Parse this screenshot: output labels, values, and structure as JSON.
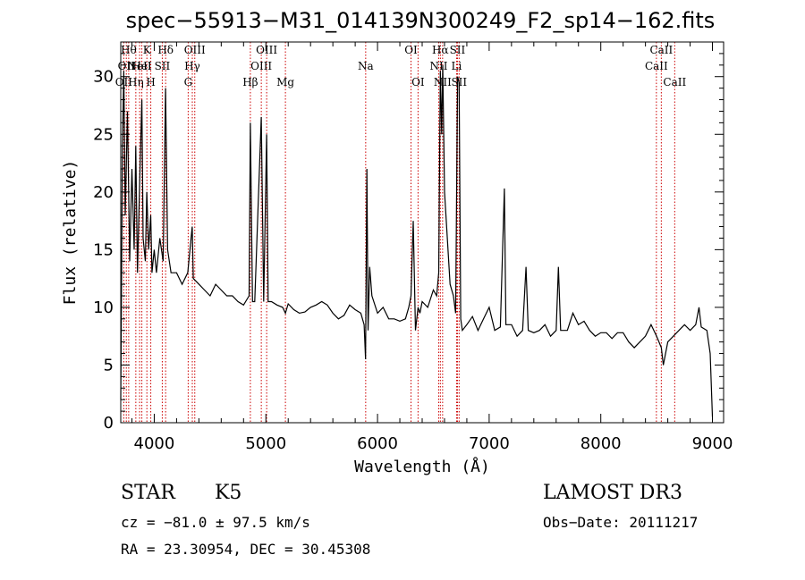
{
  "chart_data": {
    "type": "line",
    "title": "spec−55913−M31_014139N300249_F2_sp14−162.fits",
    "xlabel": "Wavelength (Å)",
    "ylabel": "Flux (relative)",
    "xlim": [
      3700,
      9100
    ],
    "ylim": [
      0,
      33
    ],
    "xticks": [
      4000,
      5000,
      6000,
      7000,
      8000,
      9000
    ],
    "yticks": [
      0,
      5,
      10,
      15,
      20,
      25,
      30
    ],
    "series": [
      {
        "color": "#000000",
        "x": [
          3700,
          3715,
          3727,
          3740,
          3760,
          3780,
          3800,
          3820,
          3835,
          3850,
          3870,
          3889,
          3900,
          3920,
          3933,
          3950,
          3968,
          3980,
          4000,
          4020,
          4050,
          4080,
          4101,
          4120,
          4150,
          4200,
          4250,
          4300,
          4340,
          4350,
          4400,
          4450,
          4500,
          4550,
          4600,
          4650,
          4700,
          4750,
          4800,
          4850,
          4861,
          4880,
          4900,
          4959,
          4980,
          5007,
          5020,
          5050,
          5100,
          5150,
          5175,
          5200,
          5250,
          5300,
          5350,
          5400,
          5450,
          5500,
          5550,
          5600,
          5650,
          5700,
          5750,
          5800,
          5850,
          5880,
          5893,
          5905,
          5915,
          5930,
          5950,
          6000,
          6050,
          6100,
          6150,
          6200,
          6250,
          6280,
          6300,
          6320,
          6340,
          6363,
          6380,
          6400,
          6450,
          6500,
          6530,
          6548,
          6563,
          6575,
          6584,
          6600,
          6650,
          6680,
          6700,
          6717,
          6731,
          6745,
          6760,
          6800,
          6850,
          6900,
          6950,
          7000,
          7050,
          7100,
          7136,
          7150,
          7200,
          7250,
          7300,
          7330,
          7350,
          7400,
          7450,
          7500,
          7550,
          7600,
          7620,
          7640,
          7700,
          7750,
          7800,
          7850,
          7900,
          7950,
          8000,
          8050,
          8100,
          8150,
          8200,
          8250,
          8300,
          8350,
          8400,
          8450,
          8500,
          8542,
          8560,
          8600,
          8650,
          8700,
          8750,
          8800,
          8850,
          8880,
          8900,
          8950,
          8980,
          9000
        ],
        "y": [
          2.0,
          24.0,
          30.5,
          18.0,
          27.0,
          14.0,
          22.0,
          15.0,
          24.0,
          13.0,
          21.0,
          28.0,
          16.0,
          14.0,
          20.0,
          15.0,
          18.0,
          13.0,
          15.0,
          13.0,
          16.0,
          14.0,
          29.0,
          15.0,
          13.0,
          13.0,
          12.0,
          13.0,
          17.0,
          12.5,
          12.0,
          11.5,
          11.0,
          12.0,
          11.5,
          11.0,
          11.0,
          10.5,
          10.2,
          11.0,
          26.0,
          10.5,
          10.5,
          26.5,
          10.5,
          25.0,
          10.5,
          10.5,
          10.2,
          10.0,
          9.5,
          10.3,
          9.8,
          9.5,
          9.6,
          10.0,
          10.2,
          10.5,
          10.2,
          9.5,
          9.0,
          9.3,
          10.2,
          9.8,
          9.5,
          8.5,
          5.5,
          22.0,
          8.0,
          13.5,
          11.0,
          9.5,
          10.0,
          9.0,
          9.0,
          8.8,
          9.0,
          10.0,
          11.0,
          17.5,
          8.0,
          10.0,
          9.5,
          10.5,
          10.0,
          11.5,
          11.0,
          13.0,
          30.5,
          25.0,
          31.0,
          20.0,
          12.0,
          11.0,
          9.5,
          30.0,
          29.5,
          9.0,
          8.0,
          8.5,
          9.2,
          8.0,
          9.0,
          10.0,
          8.0,
          8.3,
          20.3,
          8.5,
          8.5,
          7.5,
          8.0,
          13.5,
          8.0,
          7.8,
          8.0,
          8.5,
          7.5,
          8.0,
          13.5,
          8.0,
          8.0,
          9.5,
          8.5,
          8.8,
          8.0,
          7.5,
          7.8,
          7.8,
          7.3,
          7.8,
          7.8,
          7.0,
          6.5,
          7.0,
          7.5,
          8.5,
          7.5,
          6.5,
          5.0,
          7.0,
          7.5,
          8.0,
          8.5,
          8.0,
          8.5,
          10.0,
          8.3,
          8.0,
          6.0,
          0.5
        ]
      }
    ],
    "line_markers": [
      {
        "wave": 3727,
        "labels": [
          "OII"
        ],
        "row": [
          3
        ]
      },
      {
        "wave": 3750,
        "labels": [
          "OII"
        ],
        "row": [
          1
        ]
      },
      {
        "wave": 3771,
        "labels": [
          "Hθ"
        ],
        "row": [
          0
        ]
      },
      {
        "wave": 3835,
        "labels": [
          "Hη"
        ],
        "row": [
          3
        ]
      },
      {
        "wave": 3869,
        "labels": [
          "NeII"
        ],
        "row": [
          1
        ]
      },
      {
        "wave": 3889,
        "labels": [
          "HeI"
        ],
        "row": [
          1
        ]
      },
      {
        "wave": 3934,
        "labels": [
          "K"
        ],
        "row": [
          0
        ]
      },
      {
        "wave": 3969,
        "labels": [
          "H"
        ],
        "row": [
          3
        ]
      },
      {
        "wave": 4072,
        "labels": [
          "SII"
        ],
        "row": [
          1
        ]
      },
      {
        "wave": 4102,
        "labels": [
          "Hδ"
        ],
        "row": [
          0
        ]
      },
      {
        "wave": 4304,
        "labels": [
          "G"
        ],
        "row": [
          3
        ]
      },
      {
        "wave": 4341,
        "labels": [
          "Hγ"
        ],
        "row": [
          1
        ]
      },
      {
        "wave": 4363,
        "labels": [
          "OIII"
        ],
        "row": [
          0
        ]
      },
      {
        "wave": 4861,
        "labels": [
          "Hβ"
        ],
        "row": [
          3
        ]
      },
      {
        "wave": 4959,
        "labels": [
          "OIII"
        ],
        "row": [
          1
        ]
      },
      {
        "wave": 5007,
        "labels": [
          "OIII"
        ],
        "row": [
          0
        ]
      },
      {
        "wave": 5175,
        "labels": [
          "Mg"
        ],
        "row": [
          3
        ]
      },
      {
        "wave": 5894,
        "labels": [
          "Na"
        ],
        "row": [
          1
        ]
      },
      {
        "wave": 6300,
        "labels": [
          "OI"
        ],
        "row": [
          0
        ]
      },
      {
        "wave": 6363,
        "labels": [
          "OI"
        ],
        "row": [
          3
        ]
      },
      {
        "wave": 6548,
        "labels": [
          "NII"
        ],
        "row": [
          1
        ]
      },
      {
        "wave": 6563,
        "labels": [
          "Hα"
        ],
        "row": [
          0
        ]
      },
      {
        "wave": 6583,
        "labels": [
          "NII"
        ],
        "row": [
          3
        ]
      },
      {
        "wave": 6708,
        "labels": [
          "Li"
        ],
        "row": [
          1
        ]
      },
      {
        "wave": 6716,
        "labels": [
          "SII"
        ],
        "row": [
          0
        ]
      },
      {
        "wave": 6731,
        "labels": [
          "SII"
        ],
        "row": [
          3
        ]
      },
      {
        "wave": 8498,
        "labels": [
          "CaII"
        ],
        "row": [
          1
        ]
      },
      {
        "wave": 8542,
        "labels": [
          "CaII"
        ],
        "row": [
          0
        ]
      },
      {
        "wave": 8662,
        "labels": [
          "CaII"
        ],
        "row": [
          3
        ]
      }
    ],
    "info": {
      "class_label": "STAR",
      "subclass": "K5",
      "survey": "LAMOST DR3",
      "cz": "cz = −81.0 ± 97.5 km/s",
      "obs_date": "Obs−Date: 20111217",
      "radec": "RA =  23.30954, DEC =  30.45308"
    },
    "marker_color": "#cc0000"
  }
}
